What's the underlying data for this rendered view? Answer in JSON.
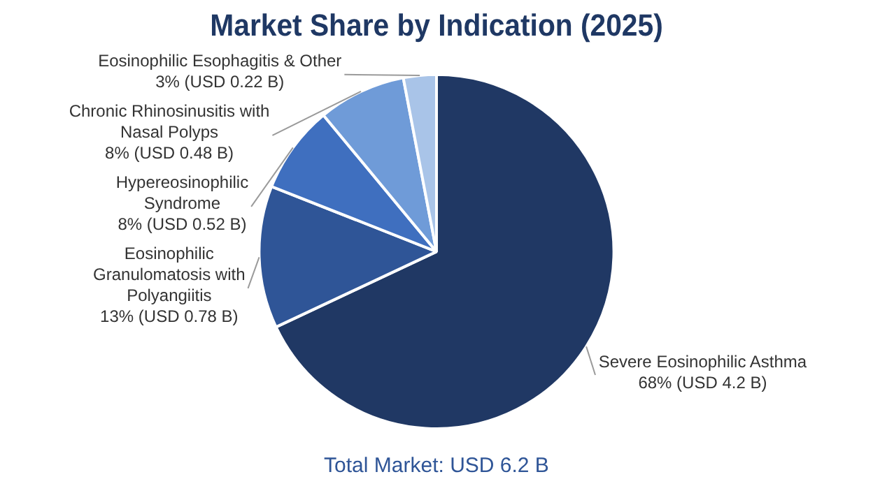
{
  "chart_data": {
    "type": "pie",
    "title": "Market Share by Indication (2025)",
    "categories": [
      "Severe Eosinophilic Asthma",
      "Eosinophilic Granulomatosis with Polyangiitis",
      "Hypereosinophilic Syndrome",
      "Chronic Rhinosinusitis with Nasal Polyps",
      "Eosinophilic Esophagitis & Other"
    ],
    "values": [
      68,
      13,
      8,
      8,
      3
    ],
    "value_labels": [
      "68% (USD 4.2 B)",
      "13% (USD 0.78 B)",
      "8% (USD 0.52 B)",
      "8% (USD 0.48 B)",
      "3% (USD 0.22 B)"
    ],
    "colors": [
      "#203864",
      "#2f5597",
      "#3f6fbf",
      "#6f9bd8",
      "#a9c4e8"
    ],
    "annotations": [
      "Total Market: USD 6.2 B"
    ]
  }
}
